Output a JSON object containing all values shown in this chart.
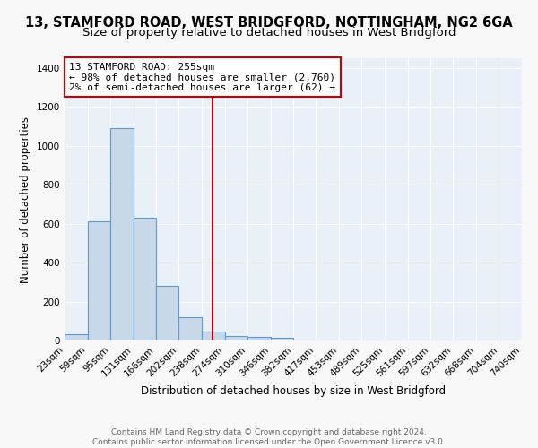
{
  "title": "13, STAMFORD ROAD, WEST BRIDGFORD, NOTTINGHAM, NG2 6GA",
  "subtitle": "Size of property relative to detached houses in West Bridgford",
  "xlabel": "Distribution of detached houses by size in West Bridgford",
  "ylabel": "Number of detached properties",
  "footnote1": "Contains HM Land Registry data © Crown copyright and database right 2024.",
  "footnote2": "Contains public sector information licensed under the Open Government Licence v3.0.",
  "bar_edges": [
    23,
    59,
    95,
    131,
    166,
    202,
    238,
    274,
    310,
    346,
    382,
    417,
    453,
    489,
    525,
    561,
    597,
    632,
    668,
    704,
    740
  ],
  "bar_heights": [
    30,
    610,
    1090,
    630,
    280,
    120,
    45,
    25,
    20,
    12,
    0,
    0,
    0,
    0,
    0,
    0,
    0,
    0,
    0,
    0
  ],
  "bar_color": "#c8d8e8",
  "bar_edge_color": "#5b9bd5",
  "reference_line_x": 255,
  "reference_line_color": "#cc0000",
  "annotation_line1": "13 STAMFORD ROAD: 255sqm",
  "annotation_line2": "← 98% of detached houses are smaller (2,760)",
  "annotation_line3": "2% of semi-detached houses are larger (62) →",
  "ylim": [
    0,
    1450
  ],
  "yticks": [
    0,
    200,
    400,
    600,
    800,
    1000,
    1200,
    1400
  ],
  "background_color": "#eaf0f8",
  "grid_color": "#ffffff",
  "title_fontsize": 10.5,
  "subtitle_fontsize": 9.5,
  "axis_label_fontsize": 8.5,
  "tick_fontsize": 7.5,
  "annotation_fontsize": 8,
  "footnote_fontsize": 6.5
}
